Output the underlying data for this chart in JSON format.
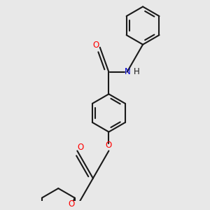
{
  "background_color": "#e8e8e8",
  "line_color": "#1a1a1a",
  "oxygen_color": "#ff0000",
  "nitrogen_color": "#0000cc",
  "line_width": 1.5,
  "figsize": [
    3.0,
    3.0
  ],
  "dpi": 100,
  "xlim": [
    -2.5,
    2.5
  ],
  "ylim": [
    -3.5,
    2.8
  ]
}
